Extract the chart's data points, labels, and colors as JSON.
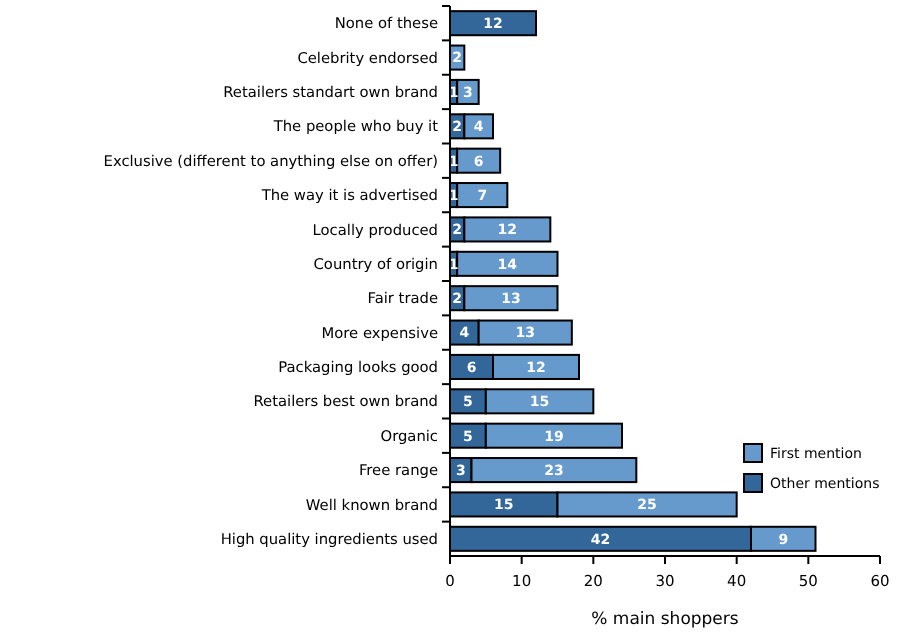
{
  "chart_data": {
    "type": "bar",
    "orientation": "horizontal",
    "stacked": true,
    "xlabel": "% main shoppers",
    "categories": [
      "None of these",
      "Celebrity endorsed",
      "Retailers standart own brand",
      "The people who buy it",
      "Exclusive (different to anything else on offer)",
      "The way it is advertised",
      "Locally produced",
      "Country of origin",
      "Fair trade",
      "More expensive",
      "Packaging looks good",
      "Retailers best own brand",
      "Organic",
      "Free range",
      "Well known brand",
      "High quality ingredients used"
    ],
    "series": [
      {
        "name": "Other mentions",
        "color": "#336699",
        "values": [
          12,
          null,
          1,
          2,
          1,
          1,
          2,
          1,
          2,
          4,
          6,
          5,
          5,
          3,
          15,
          42
        ]
      },
      {
        "name": "First mention",
        "color": "#6699cc",
        "values": [
          null,
          2,
          3,
          4,
          6,
          7,
          12,
          14,
          13,
          13,
          12,
          15,
          19,
          23,
          25,
          9
        ]
      }
    ],
    "xlim": [
      0,
      60
    ],
    "xticks": [
      0,
      10,
      20,
      30,
      40,
      50,
      60
    ],
    "data_labels": true,
    "legend": "right",
    "grid": false
  }
}
